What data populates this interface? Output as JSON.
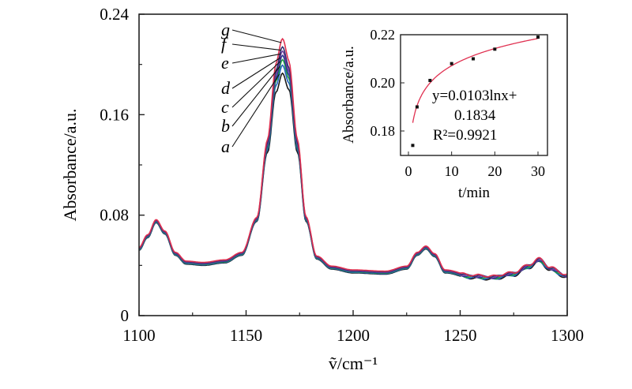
{
  "chart_data": [
    {
      "type": "line",
      "title": "",
      "xlabel": "ṽ/cm⁻¹",
      "ylabel": "Absorbance/a.u.",
      "xlim": [
        1100,
        1300
      ],
      "ylim": [
        0,
        0.24
      ],
      "xticks": [
        "1100",
        "1150",
        "1200",
        "1250",
        "1300"
      ],
      "yticks": [
        "0",
        "0.08",
        "0.16",
        "0.24"
      ],
      "grid": false,
      "base_profile": {
        "x": [
          1100,
          1104,
          1108,
          1112,
          1117,
          1122,
          1130,
          1140,
          1148,
          1155,
          1160,
          1164,
          1167,
          1170,
          1174,
          1178,
          1183,
          1190,
          1200,
          1215,
          1225,
          1230,
          1234,
          1238,
          1243,
          1255,
          1265,
          1275,
          1282,
          1287,
          1292,
          1300
        ],
        "y": [
          0.052,
          0.062,
          0.074,
          0.065,
          0.048,
          0.041,
          0.04,
          0.042,
          0.048,
          0.075,
          0.13,
          0.178,
          0.193,
          0.18,
          0.13,
          0.075,
          0.045,
          0.037,
          0.034,
          0.033,
          0.037,
          0.048,
          0.053,
          0.047,
          0.034,
          0.03,
          0.029,
          0.032,
          0.038,
          0.043,
          0.036,
          0.03
        ]
      },
      "series": [
        {
          "name": "a",
          "color": "#1a1a1a",
          "peak": 0.193
        },
        {
          "name": "b",
          "color": "#2060c0",
          "peak": 0.199
        },
        {
          "name": "c",
          "color": "#20a040",
          "peak": 0.203
        },
        {
          "name": "d",
          "color": "#283890",
          "peak": 0.206
        },
        {
          "name": "e",
          "color": "#7040a0",
          "peak": 0.209
        },
        {
          "name": "f",
          "color": "#303070",
          "peak": 0.212
        },
        {
          "name": "g",
          "color": "#e03050",
          "peak": 0.218
        }
      ]
    },
    {
      "type": "scatter",
      "xlabel": "t/min",
      "ylabel": "Absorbance/a.u.",
      "xlim": [
        -1.5,
        32
      ],
      "ylim": [
        0.1698,
        0.22
      ],
      "xticks": [
        "0",
        "10",
        "20",
        "30"
      ],
      "yticks": [
        "0.18",
        "0.20",
        "0.22"
      ],
      "points": {
        "x": [
          1,
          2,
          5,
          10,
          15,
          20,
          30
        ],
        "y": [
          0.174,
          0.19,
          0.201,
          0.208,
          0.21,
          0.214,
          0.219
        ]
      },
      "fit": {
        "a": 0.0103,
        "b": 0.1834,
        "color": "#e03050"
      },
      "annotation": {
        "line1": "y=0.0103lnx+",
        "line2": "0.1834",
        "line3": "R²=0.9921"
      }
    }
  ]
}
